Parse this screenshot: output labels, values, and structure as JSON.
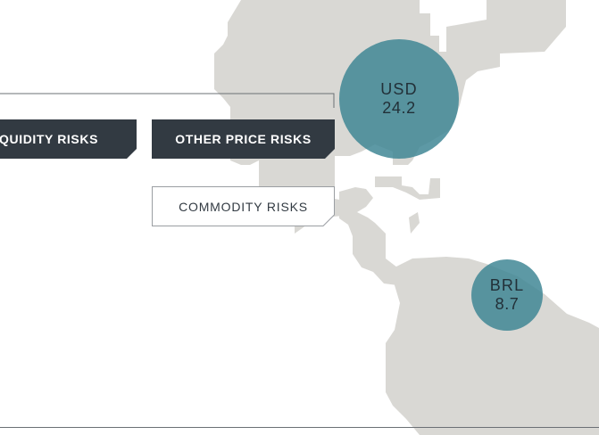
{
  "tabs": {
    "liquidity": "QUIDITY RISKS",
    "other_price": "OTHER PRICE RISKS"
  },
  "sub_tab": {
    "commodity": "COMMODITY RISKS"
  },
  "bubbles": [
    {
      "code": "USD",
      "value": "24.2"
    },
    {
      "code": "BRL",
      "value": "8.7"
    }
  ],
  "colors": {
    "tab_dark": "#323a42",
    "land": "#d9d8d4",
    "bubble": "#3e8694",
    "line": "#6b7075"
  }
}
